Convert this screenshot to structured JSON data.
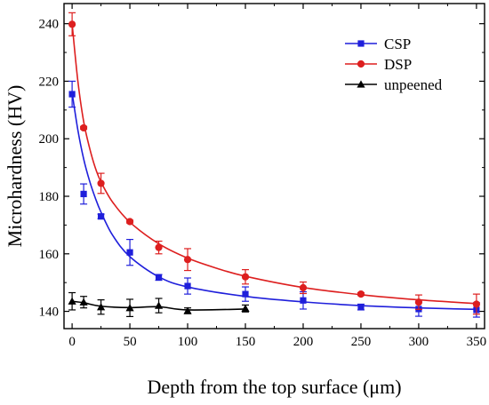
{
  "chart_data": {
    "type": "line",
    "xlabel": "Depth from the top surface (μm)",
    "ylabel": "Microhardness (HV)",
    "xlim": [
      -7,
      357
    ],
    "ylim": [
      134,
      247
    ],
    "xticks": [
      0,
      50,
      100,
      150,
      200,
      250,
      300,
      350
    ],
    "yticks": [
      140,
      160,
      180,
      200,
      220,
      240
    ],
    "xtick_labels": [
      "0",
      "50",
      "100",
      "150",
      "200",
      "250",
      "300",
      "350"
    ],
    "ytick_labels": [
      "140",
      "160",
      "180",
      "200",
      "220",
      "240"
    ],
    "grid": false,
    "legend_position": "top-right",
    "series": [
      {
        "name": "CSP",
        "color": "#1f1fdb",
        "marker": "square",
        "x": [
          0,
          10,
          25,
          50,
          75,
          100,
          150,
          200,
          250,
          300,
          350
        ],
        "y": [
          215.5,
          180.8,
          173,
          160.5,
          151.8,
          148.8,
          146,
          143.8,
          141.5,
          140.8,
          140.5
        ],
        "err": [
          4.5,
          3.5,
          0.8,
          4.5,
          1,
          2.8,
          2.5,
          3,
          1,
          2.5,
          2.5
        ],
        "fit": [
          [
            0,
            216
          ],
          [
            5,
            203
          ],
          [
            10,
            193
          ],
          [
            15,
            185.5
          ],
          [
            20,
            179.5
          ],
          [
            25,
            174.5
          ],
          [
            35,
            166.5
          ],
          [
            50,
            159
          ],
          [
            75,
            152
          ],
          [
            100,
            148.5
          ],
          [
            150,
            145.2
          ],
          [
            200,
            143.3
          ],
          [
            250,
            142
          ],
          [
            300,
            141.2
          ],
          [
            350,
            140.7
          ]
        ]
      },
      {
        "name": "DSP",
        "color": "#dd1f1f",
        "marker": "circle",
        "x": [
          0,
          10,
          25,
          50,
          75,
          100,
          150,
          200,
          250,
          300,
          350
        ],
        "y": [
          239.8,
          203.8,
          184.5,
          171.2,
          162.2,
          158,
          152,
          148.2,
          146,
          143.2,
          142.5
        ],
        "err": [
          4,
          0.5,
          3.5,
          0.5,
          2.2,
          3.8,
          2.5,
          2,
          0.5,
          2.5,
          3.5
        ],
        "fit": [
          [
            0,
            240
          ],
          [
            5,
            220
          ],
          [
            10,
            206
          ],
          [
            15,
            197
          ],
          [
            20,
            190
          ],
          [
            25,
            185
          ],
          [
            35,
            178
          ],
          [
            50,
            171
          ],
          [
            75,
            163.5
          ],
          [
            100,
            158.5
          ],
          [
            125,
            155
          ],
          [
            150,
            152.2
          ],
          [
            200,
            148.3
          ],
          [
            250,
            145.8
          ],
          [
            300,
            144
          ],
          [
            350,
            142.7
          ]
        ]
      },
      {
        "name": "unpeened",
        "color": "#000000",
        "marker": "triangle",
        "x": [
          0,
          10,
          25,
          50,
          75,
          100,
          150
        ],
        "y": [
          143.5,
          143.2,
          141.5,
          141.2,
          142,
          140.2,
          141
        ],
        "err": [
          3,
          2,
          2.5,
          3,
          2.5,
          1,
          1.2
        ],
        "fit": [
          [
            0,
            143.5
          ],
          [
            10,
            143
          ],
          [
            25,
            141.8
          ],
          [
            50,
            141.3
          ],
          [
            75,
            141.6
          ],
          [
            100,
            140.5
          ],
          [
            150,
            140.8
          ]
        ]
      }
    ]
  }
}
